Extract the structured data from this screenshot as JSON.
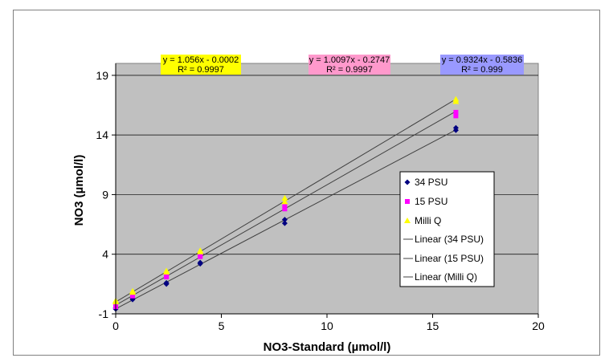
{
  "chart_data": {
    "type": "scatter",
    "title": "",
    "xlabel": "NO3-Standard (µmol/l)",
    "ylabel": "NO3 (µmol/l)",
    "xlim": [
      0,
      20
    ],
    "ylim": [
      -1,
      20
    ],
    "x_ticks": [
      "0",
      "5",
      "10",
      "15",
      "20"
    ],
    "y_ticks": [
      "-1",
      "4",
      "9",
      "14",
      "19"
    ],
    "x_tick_values": [
      0,
      5,
      10,
      15,
      20
    ],
    "y_tick_values": [
      -1,
      4,
      9,
      14,
      19
    ],
    "grid": "horizontal",
    "background": "#c0c0c0",
    "legend_position": "right",
    "series": [
      {
        "name": "34 PSU",
        "marker": "diamond",
        "color": "#000080",
        "x": [
          0,
          0,
          0.8,
          0.8,
          2.4,
          2.4,
          4.0,
          4.0,
          8.0,
          8.0,
          16.1,
          16.1
        ],
        "y": [
          -0.6,
          -0.5,
          0.2,
          0.3,
          1.5,
          1.6,
          3.2,
          3.3,
          6.6,
          6.9,
          14.4,
          14.6
        ],
        "equation": "y = 0.9324x - 0.5836",
        "r2": "R² = 0.999",
        "label_color": "#9999ff",
        "fit": {
          "slope": 0.9324,
          "intercept": -0.5836
        }
      },
      {
        "name": "15 PSU",
        "marker": "square",
        "color": "#ff00ff",
        "x": [
          0,
          0,
          0.8,
          0.8,
          2.4,
          2.4,
          4.0,
          4.0,
          8.0,
          8.0,
          16.1,
          16.1
        ],
        "y": [
          -0.4,
          -0.3,
          0.5,
          0.6,
          2.1,
          2.2,
          3.8,
          3.9,
          7.8,
          8.0,
          15.6,
          15.9
        ],
        "equation": "y = 1.0097x - 0.2747",
        "r2": "R² = 0.9997",
        "label_color": "#ff99cc",
        "fit": {
          "slope": 1.0097,
          "intercept": -0.2747
        }
      },
      {
        "name": "Milli Q",
        "marker": "triangle",
        "color": "#ffff00",
        "x": [
          0,
          0,
          0.8,
          0.8,
          2.4,
          2.4,
          4.0,
          4.0,
          8.0,
          8.0,
          16.1,
          16.1
        ],
        "y": [
          0.0,
          0.1,
          0.8,
          0.9,
          2.5,
          2.6,
          4.2,
          4.3,
          8.4,
          8.7,
          16.8,
          17.0
        ],
        "equation": "y = 1.056x - 0.0002",
        "r2": "R² = 0.9997",
        "label_color": "#ffff00",
        "fit": {
          "slope": 1.056,
          "intercept": -0.0002
        }
      }
    ],
    "trendline_legend": [
      "Linear (34 PSU)",
      "Linear (15 PSU)",
      "Linear (Milli Q)"
    ],
    "trendline_color": "#404040",
    "trend_x_range": [
      0,
      16.1
    ]
  }
}
